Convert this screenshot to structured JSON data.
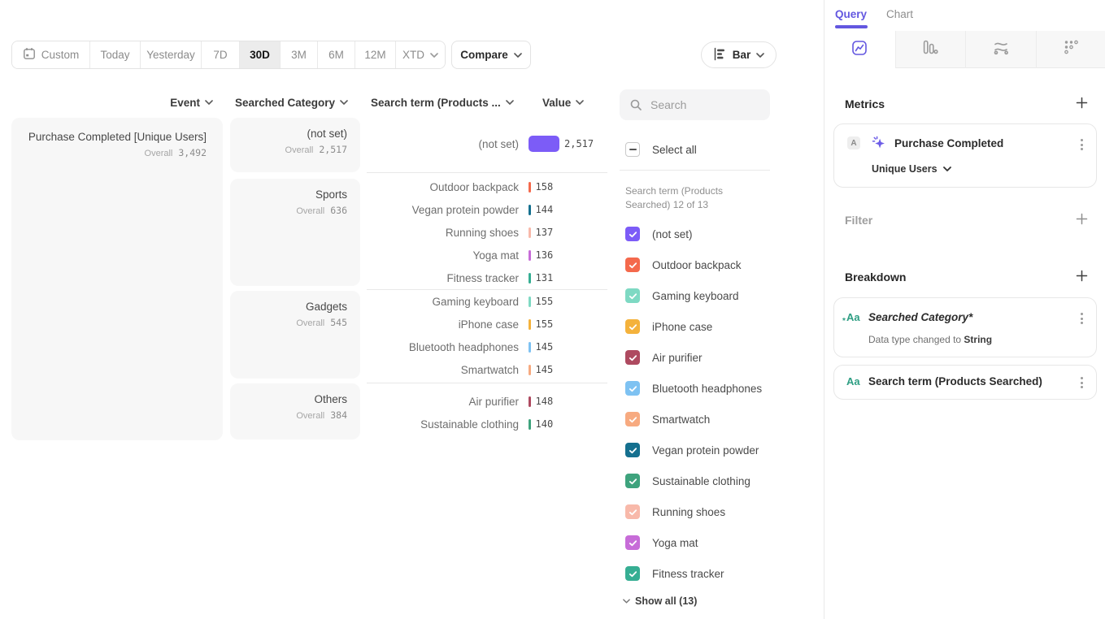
{
  "colors": {
    "accent": "#6357E0",
    "bar_purple": "#7C5CF7"
  },
  "toolbar": {
    "date_ranges": [
      "Custom",
      "Today",
      "Yesterday",
      "7D",
      "30D",
      "3M",
      "6M",
      "12M",
      "XTD"
    ],
    "selected_range": "30D",
    "compare_label": "Compare",
    "chart_type_label": "Bar"
  },
  "table": {
    "headers": [
      "Event",
      "Searched Category",
      "Search term (Products ...",
      "Value"
    ],
    "overall_label": "Overall",
    "max_value": 2517,
    "event": {
      "name": "Purchase Completed [Unique Users]",
      "overall": "3,492"
    },
    "categories": [
      {
        "name": "(not set)",
        "overall": "2,517",
        "rows": [
          {
            "term": "(not set)",
            "value": "2,517",
            "n": 2517,
            "color": "#7C5CF7"
          }
        ]
      },
      {
        "name": "Sports",
        "overall": "636",
        "rows": [
          {
            "term": "Outdoor backpack",
            "value": "158",
            "n": 158,
            "color": "#F4694C"
          },
          {
            "term": "Vegan protein powder",
            "value": "144",
            "n": 144,
            "color": "#15708F"
          },
          {
            "term": "Running shoes",
            "value": "137",
            "n": 137,
            "color": "#F8B9AA"
          },
          {
            "term": "Yoga mat",
            "value": "136",
            "n": 136,
            "color": "#C76CD8"
          },
          {
            "term": "Fitness tracker",
            "value": "131",
            "n": 131,
            "color": "#36AE93"
          }
        ]
      },
      {
        "name": "Gadgets",
        "overall": "545",
        "rows": [
          {
            "term": "Gaming keyboard",
            "value": "155",
            "n": 155,
            "color": "#7ED9C3"
          },
          {
            "term": "iPhone case",
            "value": "155",
            "n": 155,
            "color": "#F4B23C"
          },
          {
            "term": "Bluetooth headphones",
            "value": "145",
            "n": 145,
            "color": "#7EC2F2"
          },
          {
            "term": "Smartwatch",
            "value": "145",
            "n": 145,
            "color": "#F7AA80"
          }
        ]
      },
      {
        "name": "Others",
        "overall": "384",
        "rows": [
          {
            "term": "Air purifier",
            "value": "148",
            "n": 148,
            "color": "#AE4A60"
          },
          {
            "term": "Sustainable clothing",
            "value": "140",
            "n": 140,
            "color": "#3EA37D"
          }
        ]
      }
    ]
  },
  "filter_panel": {
    "search_placeholder": "Search",
    "select_all_label": "Select all",
    "list_label": "Search term (Products Searched) 12 of 13",
    "show_all_label": "Show all (13)",
    "items": [
      {
        "label": "(not set)",
        "color": "#7C5CF7",
        "checked": true
      },
      {
        "label": "Outdoor backpack",
        "color": "#F4694C",
        "checked": true
      },
      {
        "label": "Gaming keyboard",
        "color": "#7ED9C3",
        "checked": true
      },
      {
        "label": "iPhone case",
        "color": "#F4B23C",
        "checked": true
      },
      {
        "label": "Air purifier",
        "color": "#AE4A60",
        "checked": true
      },
      {
        "label": "Bluetooth headphones",
        "color": "#7EC2F2",
        "checked": true
      },
      {
        "label": "Smartwatch",
        "color": "#F7AA80",
        "checked": true
      },
      {
        "label": "Vegan protein powder",
        "color": "#15708F",
        "checked": true
      },
      {
        "label": "Sustainable clothing",
        "color": "#3EA37D",
        "checked": true
      },
      {
        "label": "Running shoes",
        "color": "#F8B9AA",
        "checked": true
      },
      {
        "label": "Yoga mat",
        "color": "#C76CD8",
        "checked": true
      },
      {
        "label": "Fitness tracker",
        "color": "#36AE93",
        "checked": true,
        "pattern": "dots"
      }
    ]
  },
  "query_panel": {
    "tabs": {
      "query": "Query",
      "chart": "Chart"
    },
    "metrics_heading": "Metrics",
    "metric": {
      "letter": "A",
      "name": "Purchase Completed",
      "measure": "Unique Users"
    },
    "filter_heading": "Filter",
    "breakdown_heading": "Breakdown",
    "aa_glyph": "Aa",
    "breakdowns": [
      {
        "name": "Searched Category*",
        "note_prefix": "Data type changed to ",
        "note_value": "String"
      },
      {
        "name": "Search term (Products Searched)"
      }
    ]
  }
}
